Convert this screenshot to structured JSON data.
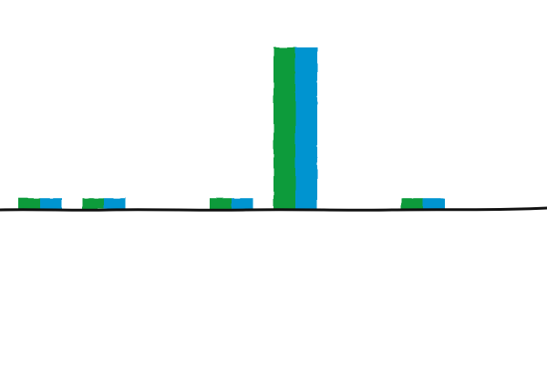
{
  "chart_data": {
    "type": "bar",
    "categories": [
      "",
      "",
      "",
      "",
      "",
      "",
      ""
    ],
    "series": [
      {
        "values": [
          1.5,
          1.5,
          0,
          1.5,
          22.5,
          0,
          1.5
        ]
      },
      {
        "values": [
          1.5,
          1.5,
          0,
          1.5,
          22.5,
          0,
          1.5
        ]
      }
    ],
    "colors": [
      "#0a9b3a",
      "#0094d0"
    ],
    "axis_color": "#111111",
    "ylim": [
      0,
      22.5
    ],
    "grid": false,
    "legend": "none",
    "style": "hand-drawn"
  }
}
